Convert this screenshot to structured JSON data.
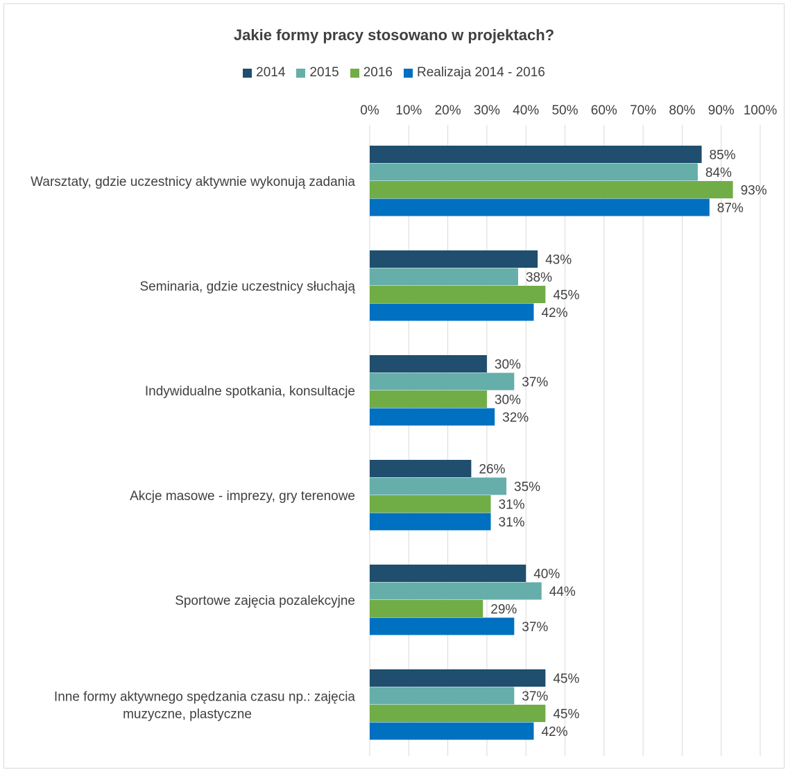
{
  "chart_data": {
    "type": "bar",
    "orientation": "horizontal",
    "title": "Jakie formy pracy stosowano w projektach?",
    "categories": [
      [
        "Warsztaty, gdzie uczestnicy aktywnie wykonują zadania"
      ],
      [
        "Seminaria, gdzie uczestnicy słuchają"
      ],
      [
        "Indywidualne spotkania, konsultacje"
      ],
      [
        "Akcje masowe - imprezy, gry terenowe"
      ],
      [
        "Sportowe zajęcia pozalekcyjne"
      ],
      [
        "Inne formy aktywnego spędzania czasu np.: zajęcia",
        "muzyczne, plastyczne"
      ]
    ],
    "series": [
      {
        "name": "2014",
        "color": "#1f4e6e",
        "values": [
          85,
          43,
          30,
          26,
          40,
          45
        ],
        "labels": [
          "85%",
          "43%",
          "30%",
          "26%",
          "40%",
          "45%"
        ]
      },
      {
        "name": "2015",
        "color": "#65aeaa",
        "values": [
          84,
          38,
          37,
          35,
          44,
          37
        ],
        "labels": [
          "84%",
          "38%",
          "37%",
          "35%",
          "44%",
          "37%"
        ]
      },
      {
        "name": "2016",
        "color": "#71ad47",
        "values": [
          93,
          45,
          30,
          31,
          29,
          45
        ],
        "labels": [
          "93%",
          "45%",
          "30%",
          "31%",
          "29%",
          "45%"
        ]
      },
      {
        "name": "Realizaja 2014 - 2016",
        "color": "#0070c0",
        "values": [
          87,
          42,
          32,
          31,
          37,
          42
        ],
        "labels": [
          "87%",
          "42%",
          "32%",
          "31%",
          "37%",
          "42%"
        ]
      }
    ],
    "xlim": [
      0,
      100
    ],
    "xticks": [
      "0%",
      "10%",
      "20%",
      "30%",
      "40%",
      "50%",
      "60%",
      "70%",
      "80%",
      "90%",
      "100%"
    ],
    "gridlines": true,
    "legend_position": "top"
  }
}
